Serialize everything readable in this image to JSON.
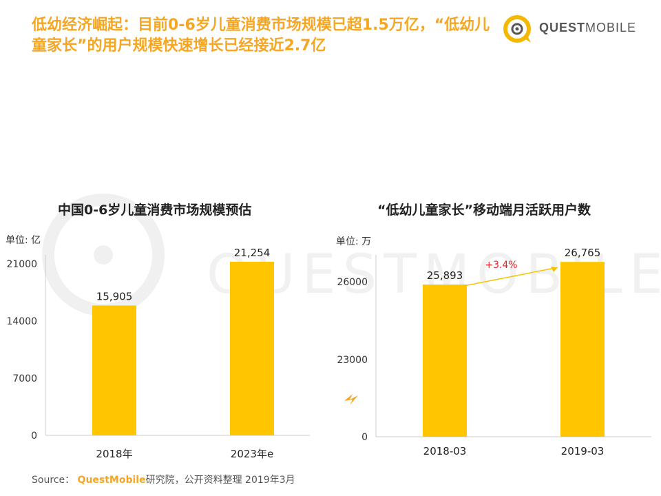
{
  "title": "低幼经济崛起：目前0-6岁儿童消费市场规模已超1.5万亿，“低幼儿童家长”的用户规模快速增长已经接近2.7亿",
  "logo": {
    "quest": "QUEST",
    "mobile": "MOBILE"
  },
  "watermark": "QUESTMOBILE",
  "source": {
    "prefix": "Source：",
    "brand": "QuestMobile",
    "rest": "研究院，公开资料整理 2019年3月"
  },
  "colors": {
    "bar": "#FFC600",
    "title": "#f5a623",
    "growth": "#e8202a"
  },
  "chart_data": [
    {
      "type": "bar",
      "title": "中国0-6岁儿童消费市场规模预估",
      "unit": "单位: 亿",
      "categories": [
        "2018年",
        "2023年e"
      ],
      "values": [
        15905,
        21254
      ],
      "value_labels": [
        "15,905",
        "21,254"
      ],
      "yticks": [
        0,
        7000,
        14000,
        21000
      ],
      "ylim": [
        0,
        21254
      ],
      "grid": false
    },
    {
      "type": "bar",
      "title": "“低幼儿童家长”移动端月活跃用户数",
      "unit": "单位: 万",
      "categories": [
        "2018-03",
        "2019-03"
      ],
      "values": [
        25893,
        26765
      ],
      "value_labels": [
        "25,893",
        "26,765"
      ],
      "yticks": [
        0,
        23000,
        26000
      ],
      "axis_break": true,
      "annotation": "+3.4%",
      "grid": false
    }
  ]
}
